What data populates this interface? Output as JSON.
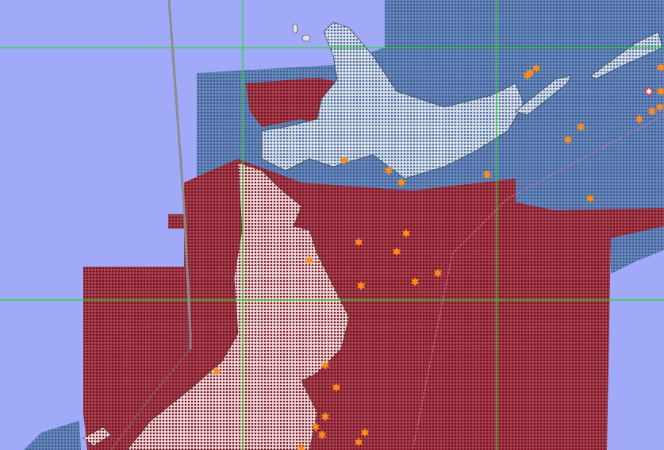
{
  "map": {
    "colors": {
      "water": "#a1a9f9",
      "land": "#e0e0e0",
      "blue_dots": "#46679f",
      "red_dots": "#8a1424",
      "graticule": "#22dd22",
      "track": "#8c8c8c",
      "marker": "#ff8c1a",
      "highlight_marker": "#ffffff"
    },
    "layers": [
      "graticule",
      "land",
      "blue-dot-grid",
      "red-dot-grid",
      "track-line",
      "event-markers"
    ],
    "marker_icon": "star-icon"
  }
}
